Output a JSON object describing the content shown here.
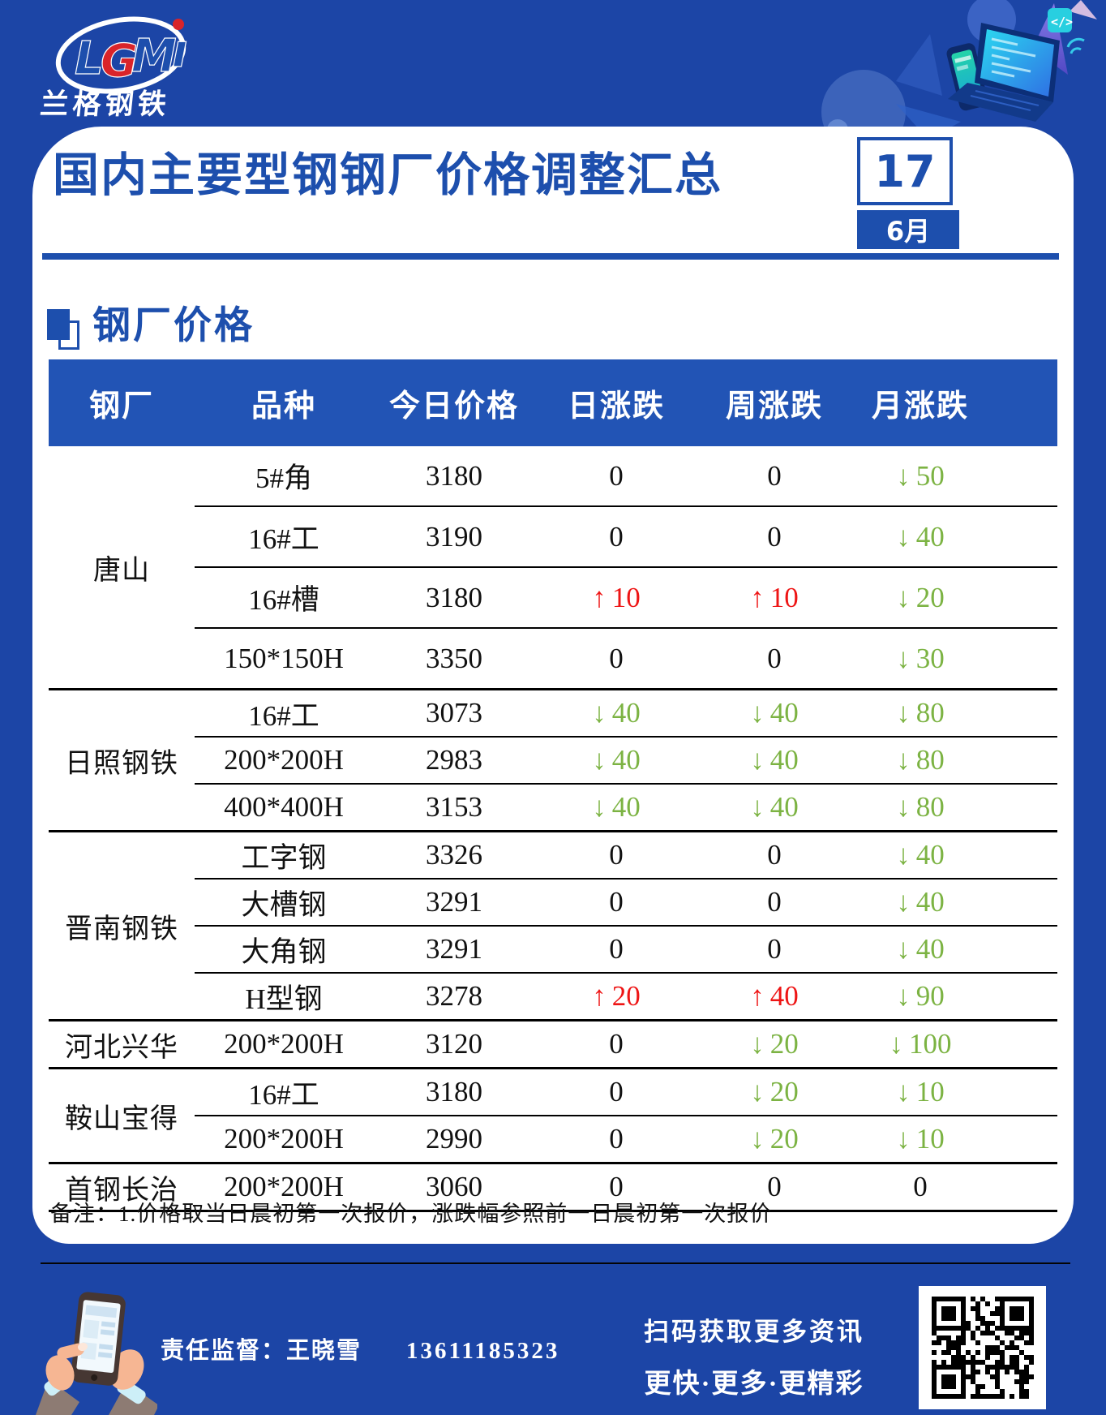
{
  "page": {
    "bg_color": "#1c45a6",
    "accent_blue": "#1d4fad",
    "table_header_blue": "#2254b5",
    "up_red": "#ee1515",
    "down_green": "#7cb343"
  },
  "header": {
    "logo": {
      "letters": [
        "L",
        "G",
        "M",
        "ı"
      ],
      "subtitle": "兰格钢铁",
      "code_tag": "</>"
    },
    "title": "国内主要型钢钢厂价格调整汇总",
    "date": {
      "day": "17",
      "month": "6月"
    }
  },
  "section": {
    "title": "钢厂价格"
  },
  "table": {
    "headers": [
      "钢厂",
      "品种",
      "今日价格",
      "日涨跌",
      "周涨跌",
      "月涨跌"
    ],
    "groups": [
      {
        "factory": "唐山",
        "tall": true,
        "rows": [
          {
            "variety": "5#角",
            "price": "3180",
            "day": "0",
            "week": "0",
            "month": "↓50"
          },
          {
            "variety": "16#工",
            "price": "3190",
            "day": "0",
            "week": "0",
            "month": "↓40"
          },
          {
            "variety": "16#槽",
            "price": "3180",
            "day": "↑10",
            "week": "↑10",
            "month": "↓20"
          },
          {
            "variety": "150*150H",
            "price": "3350",
            "day": "0",
            "week": "0",
            "month": "↓30"
          }
        ]
      },
      {
        "factory": "日照钢铁",
        "tall": false,
        "rows": [
          {
            "variety": "16#工",
            "price": "3073",
            "day": "↓40",
            "week": "↓40",
            "month": "↓80"
          },
          {
            "variety": "200*200H",
            "price": "2983",
            "day": "↓40",
            "week": "↓40",
            "month": "↓80"
          },
          {
            "variety": "400*400H",
            "price": "3153",
            "day": "↓40",
            "week": "↓40",
            "month": "↓80"
          }
        ]
      },
      {
        "factory": "晋南钢铁",
        "tall": false,
        "rows": [
          {
            "variety": "工字钢",
            "price": "3326",
            "day": "0",
            "week": "0",
            "month": "↓40"
          },
          {
            "variety": "大槽钢",
            "price": "3291",
            "day": "0",
            "week": "0",
            "month": "↓40"
          },
          {
            "variety": "大角钢",
            "price": "3291",
            "day": "0",
            "week": "0",
            "month": "↓40"
          },
          {
            "variety": "H型钢",
            "price": "3278",
            "day": "↑20",
            "week": "↑40",
            "month": "↓90"
          }
        ]
      },
      {
        "factory": "河北兴华",
        "tall": false,
        "rows": [
          {
            "variety": "200*200H",
            "price": "3120",
            "day": "0",
            "week": "↓20",
            "month": "↓100"
          }
        ]
      },
      {
        "factory": "鞍山宝得",
        "tall": false,
        "rows": [
          {
            "variety": "16#工",
            "price": "3180",
            "day": "0",
            "week": "↓20",
            "month": "↓10"
          },
          {
            "variety": "200*200H",
            "price": "2990",
            "day": "0",
            "week": "↓20",
            "month": "↓10"
          }
        ]
      },
      {
        "factory": "首钢长治",
        "tall": false,
        "rows": [
          {
            "variety": "200*200H",
            "price": "3060",
            "day": "0",
            "week": "0",
            "month": "0"
          }
        ]
      }
    ]
  },
  "note": {
    "text": "备注：1.价格取当日晨初第一次报价，涨跌幅参照前一日晨初第一次报价"
  },
  "footer": {
    "supervisor": "责任监督：王晓雪",
    "phone": "13611185323",
    "caption1": "扫码获取更多资讯",
    "caption2": "更快·更多·更精彩"
  }
}
